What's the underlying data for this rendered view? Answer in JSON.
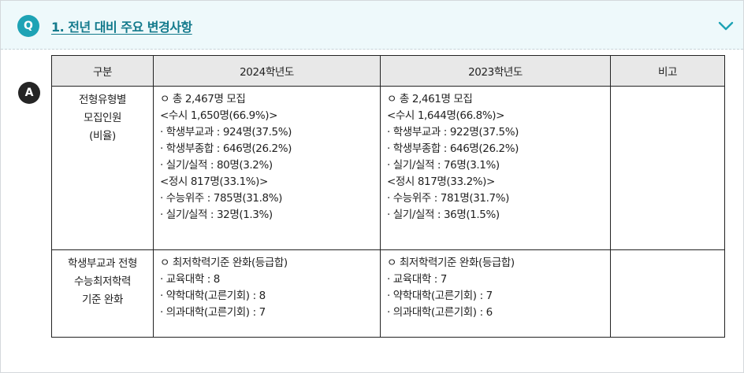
{
  "question": {
    "badge": "Q",
    "title": "1. 전년 대비 주요 변경사항"
  },
  "answer": {
    "badge": "A"
  },
  "table": {
    "headers": [
      "구분",
      "2024학년도",
      "2023학년도",
      "비고"
    ],
    "rows": [
      {
        "label": [
          "전형유형별",
          "모집인원",
          "(비율)"
        ],
        "y2024": [
          "ㅇ 총 2,467명 모집",
          "<수시 1,650명(66.9%)>",
          "· 학생부교과 : 924명(37.5%)",
          "· 학생부종합 : 646명(26.2%)",
          "· 실기/실적 : 80명(3.2%)",
          "<정시 817명(33.1%)>",
          "· 수능위주 : 785명(31.8%)",
          "· 실기/실적 : 32명(1.3%)"
        ],
        "y2023": [
          "ㅇ 총 2,461명 모집",
          "<수시 1,644명(66.8%)>",
          "· 학생부교과 : 922명(37.5%)",
          "· 학생부종합 : 646명(26.2%)",
          "· 실기/실적 : 76명(3.1%)",
          "<정시 817명(33.2%)>",
          "· 수능위주 : 781명(31.7%)",
          "· 실기/실적 : 36명(1.5%)"
        ],
        "note": ""
      },
      {
        "label": [
          "학생부교과 전형",
          "수능최저학력",
          "기준 완화"
        ],
        "y2024": [
          "ㅇ 최저학력기준 완화(등급합)",
          "· 교육대학 : 8",
          "· 약학대학(고른기회) : 8",
          "· 의과대학(고른기회) : 7"
        ],
        "y2023": [
          "ㅇ 최저학력기준 완화(등급합)",
          "· 교육대학 : 7",
          "· 약학대학(고른기회) : 7",
          "· 의과대학(고른기회) : 6"
        ],
        "note": ""
      }
    ]
  },
  "colors": {
    "header_bg": "#eef9fb",
    "q_badge": "#1ea3b5",
    "title_link": "#137a8c",
    "a_badge": "#252525",
    "table_header_bg": "#e8e8e8"
  },
  "icons": {
    "toggle": "chevron-down-icon"
  }
}
